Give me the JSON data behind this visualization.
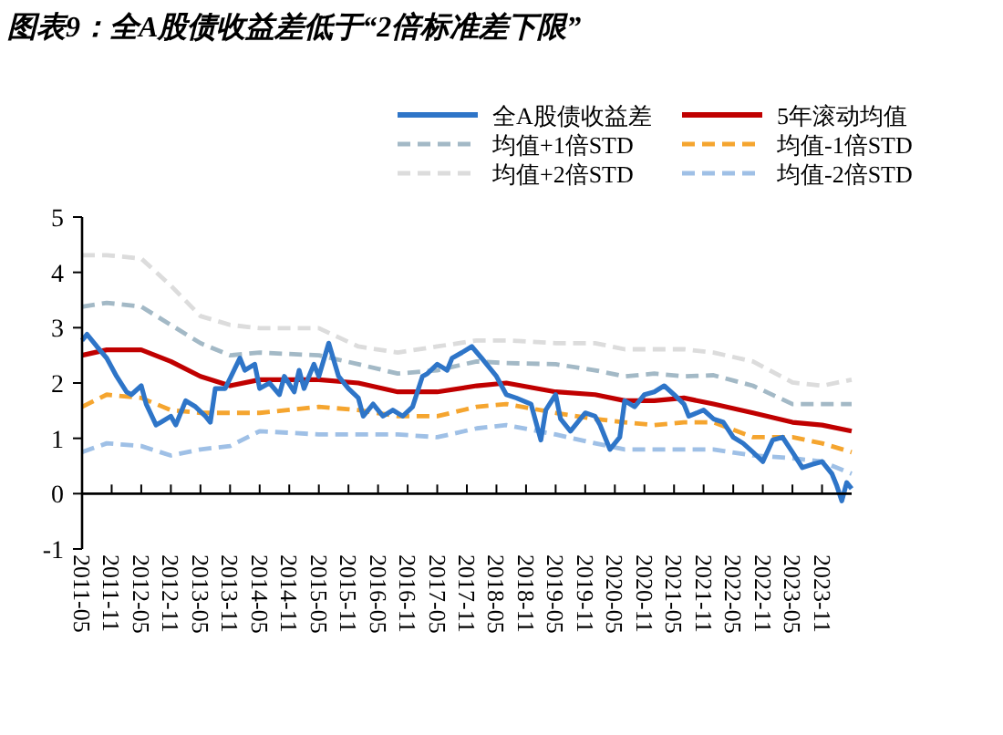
{
  "chart_data": {
    "type": "line",
    "title": "图表9：全A股债收益差低于“2倍标准差下限”",
    "xlim": [
      "2011-05",
      "2024-05"
    ],
    "xticks": [
      "2011-05",
      "2011-11",
      "2012-05",
      "2012-11",
      "2013-05",
      "2013-11",
      "2014-05",
      "2014-11",
      "2015-05",
      "2015-11",
      "2016-05",
      "2016-11",
      "2017-05",
      "2017-11",
      "2018-05",
      "2018-11",
      "2019-05",
      "2019-11",
      "2020-05",
      "2020-11",
      "2021-05",
      "2021-11",
      "2022-05",
      "2022-11",
      "2023-05",
      "2023-11"
    ],
    "ylim": [
      -1,
      5
    ],
    "yticks": [
      -1,
      0,
      1,
      2,
      3,
      4,
      5
    ],
    "grid": false,
    "legend": "top",
    "series": [
      {
        "name": "全A股债收益差",
        "color": "#2e75c8",
        "x": [
          "2011-05",
          "2011-06",
          "2011-08",
          "2011-10",
          "2011-12",
          "2012-02",
          "2012-03",
          "2012-05",
          "2012-06",
          "2012-08",
          "2012-09",
          "2012-11",
          "2012-12",
          "2013-02",
          "2013-04",
          "2013-06",
          "2013-07",
          "2013-08",
          "2013-10",
          "2014-01",
          "2014-02",
          "2014-04",
          "2014-05",
          "2014-07",
          "2014-09",
          "2014-10",
          "2014-12",
          "2015-01",
          "2015-02",
          "2015-04",
          "2015-05",
          "2015-07",
          "2015-09",
          "2015-11",
          "2016-01",
          "2016-02",
          "2016-04",
          "2016-06",
          "2016-08",
          "2016-10",
          "2016-12",
          "2017-02",
          "2017-03",
          "2017-05",
          "2017-07",
          "2017-08",
          "2017-10",
          "2017-12",
          "2018-02",
          "2018-03",
          "2018-05",
          "2018-07",
          "2018-09",
          "2018-12",
          "2019-02",
          "2019-03",
          "2019-05",
          "2019-06",
          "2019-08",
          "2019-10",
          "2019-11",
          "2020-01",
          "2020-02",
          "2020-04",
          "2020-06",
          "2020-07",
          "2020-09",
          "2020-11",
          "2021-01",
          "2021-03",
          "2021-05",
          "2021-07",
          "2021-08",
          "2021-11",
          "2022-01",
          "2022-03",
          "2022-05",
          "2022-07",
          "2022-09",
          "2022-11",
          "2023-01",
          "2023-03",
          "2023-05",
          "2023-07",
          "2023-09",
          "2023-11",
          "2024-01",
          "2024-02",
          "2024-03",
          "2024-04",
          "2024-05"
        ],
        "values": [
          2.77,
          2.88,
          2.66,
          2.45,
          2.12,
          1.84,
          1.79,
          1.95,
          1.62,
          1.24,
          1.29,
          1.4,
          1.24,
          1.68,
          1.57,
          1.4,
          1.29,
          1.9,
          1.9,
          2.45,
          2.23,
          2.34,
          1.9,
          2.0,
          1.79,
          2.12,
          1.84,
          2.23,
          1.9,
          2.34,
          2.12,
          2.72,
          2.12,
          1.9,
          1.73,
          1.4,
          1.62,
          1.4,
          1.51,
          1.4,
          1.57,
          2.12,
          2.17,
          2.34,
          2.23,
          2.45,
          2.55,
          2.66,
          2.45,
          2.34,
          2.12,
          1.79,
          1.73,
          1.62,
          0.97,
          1.51,
          1.79,
          1.35,
          1.13,
          1.35,
          1.46,
          1.4,
          1.24,
          0.8,
          1.02,
          1.68,
          1.57,
          1.79,
          1.84,
          1.95,
          1.79,
          1.62,
          1.4,
          1.51,
          1.35,
          1.29,
          1.02,
          0.91,
          0.75,
          0.58,
          0.97,
          1.02,
          0.75,
          0.47,
          0.53,
          0.58,
          0.36,
          0.14,
          -0.13,
          0.2,
          0.09
        ],
        "line_style": "solid"
      },
      {
        "name": "5年滚动均值",
        "color": "#c00000",
        "x": [
          "2011-05",
          "2011-10",
          "2012-05",
          "2012-11",
          "2013-05",
          "2013-11",
          "2014-05",
          "2015-05",
          "2016-01",
          "2016-09",
          "2017-05",
          "2018-01",
          "2018-07",
          "2019-05",
          "2020-01",
          "2020-07",
          "2021-01",
          "2021-07",
          "2022-01",
          "2022-09",
          "2023-05",
          "2023-11",
          "2024-05"
        ],
        "values": [
          2.5,
          2.6,
          2.6,
          2.39,
          2.12,
          1.95,
          2.06,
          2.06,
          2.0,
          1.84,
          1.84,
          1.95,
          2.0,
          1.84,
          1.79,
          1.68,
          1.68,
          1.73,
          1.62,
          1.46,
          1.29,
          1.24,
          1.13
        ],
        "line_style": "solid"
      },
      {
        "name": "均值+1倍STD",
        "color": "#a3b9c6",
        "x": [
          "2011-05",
          "2011-10",
          "2012-05",
          "2012-11",
          "2013-05",
          "2013-11",
          "2014-05",
          "2015-05",
          "2016-01",
          "2016-09",
          "2017-05",
          "2018-01",
          "2018-07",
          "2019-05",
          "2020-01",
          "2020-07",
          "2021-01",
          "2021-07",
          "2022-01",
          "2022-09",
          "2023-05",
          "2023-11",
          "2024-05"
        ],
        "values": [
          3.38,
          3.45,
          3.38,
          3.05,
          2.72,
          2.5,
          2.55,
          2.5,
          2.34,
          2.17,
          2.23,
          2.39,
          2.36,
          2.34,
          2.23,
          2.12,
          2.17,
          2.12,
          2.14,
          1.95,
          1.62,
          1.62,
          1.62
        ],
        "line_style": "dashed"
      },
      {
        "name": "均值-1倍STD",
        "color": "#f5a52f",
        "x": [
          "2011-05",
          "2011-10",
          "2012-05",
          "2012-11",
          "2013-05",
          "2013-11",
          "2014-05",
          "2015-05",
          "2016-01",
          "2016-09",
          "2017-05",
          "2018-01",
          "2018-07",
          "2019-05",
          "2020-01",
          "2020-07",
          "2021-01",
          "2021-07",
          "2022-01",
          "2022-09",
          "2023-05",
          "2023-11",
          "2024-05"
        ],
        "values": [
          1.57,
          1.79,
          1.73,
          1.51,
          1.46,
          1.46,
          1.46,
          1.57,
          1.51,
          1.4,
          1.4,
          1.57,
          1.62,
          1.46,
          1.35,
          1.29,
          1.24,
          1.29,
          1.29,
          1.02,
          1.02,
          0.91,
          0.75
        ],
        "line_style": "dashed"
      },
      {
        "name": "均值+2倍STD",
        "color": "#dcdcdc",
        "x": [
          "2011-05",
          "2011-10",
          "2012-05",
          "2012-11",
          "2013-05",
          "2013-11",
          "2014-05",
          "2015-05",
          "2016-01",
          "2016-09",
          "2017-05",
          "2018-01",
          "2018-07",
          "2019-05",
          "2020-01",
          "2020-07",
          "2021-01",
          "2021-07",
          "2022-01",
          "2022-09",
          "2023-05",
          "2023-11",
          "2024-05"
        ],
        "values": [
          4.31,
          4.31,
          4.25,
          3.76,
          3.21,
          3.05,
          2.99,
          2.99,
          2.66,
          2.55,
          2.66,
          2.77,
          2.77,
          2.72,
          2.72,
          2.61,
          2.61,
          2.61,
          2.55,
          2.39,
          2.01,
          1.95,
          2.06
        ],
        "line_style": "dashed"
      },
      {
        "name": "均值-2倍STD",
        "color": "#9fc0e6",
        "x": [
          "2011-05",
          "2011-10",
          "2012-05",
          "2012-11",
          "2013-05",
          "2013-11",
          "2014-05",
          "2015-05",
          "2016-01",
          "2016-09",
          "2017-05",
          "2018-01",
          "2018-07",
          "2019-05",
          "2020-01",
          "2020-07",
          "2021-01",
          "2021-07",
          "2022-01",
          "2022-09",
          "2023-05",
          "2023-11",
          "2024-05"
        ],
        "values": [
          0.75,
          0.91,
          0.86,
          0.69,
          0.8,
          0.86,
          1.13,
          1.07,
          1.07,
          1.07,
          1.02,
          1.18,
          1.24,
          1.07,
          0.91,
          0.8,
          0.8,
          0.8,
          0.8,
          0.69,
          0.64,
          0.58,
          0.36
        ],
        "line_style": "dashed"
      }
    ]
  }
}
